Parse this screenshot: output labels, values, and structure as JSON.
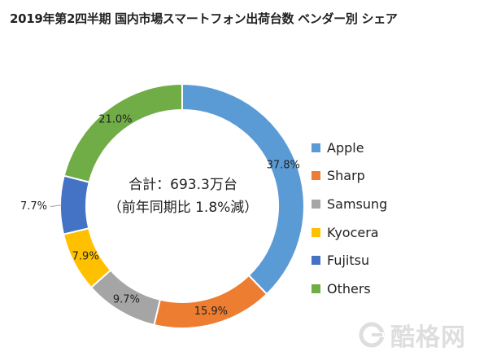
{
  "chart_data": {
    "type": "pie",
    "title": "2019年第2四半期 国内市場スマートフォン出荷台数 ベンダー別 シェア",
    "center_text": [
      "合計：693.3万台",
      "（前年同期比 1.8%減）"
    ],
    "legend_position": "right",
    "unit": "%",
    "categories": [
      "Apple",
      "Sharp",
      "Samsung",
      "Kyocera",
      "Fujitsu",
      "Others"
    ],
    "values": [
      37.8,
      15.9,
      9.7,
      7.9,
      7.7,
      21.0
    ],
    "labels": [
      "37.8%",
      "15.9%",
      "9.7%",
      "7.9%",
      "7.7%",
      "21.0%"
    ],
    "colors": [
      "#5b9bd5",
      "#ed7d31",
      "#a5a5a5",
      "#ffc000",
      "#4472c4",
      "#70ad47"
    ]
  },
  "watermark": {
    "text": "酷格网",
    "icon": "g-logo-icon",
    "color": "#b8b8b8"
  }
}
